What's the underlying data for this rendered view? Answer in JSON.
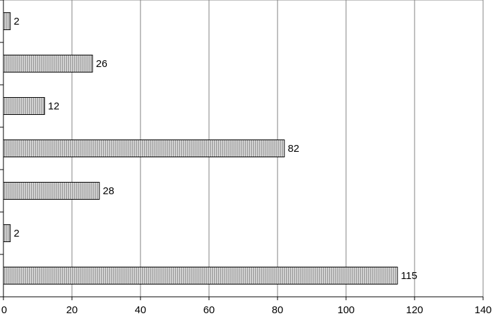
{
  "chart_data": {
    "type": "bar",
    "orientation": "horizontal",
    "categories": [
      null,
      null,
      null,
      null,
      null,
      null,
      null
    ],
    "values": [
      2,
      26,
      12,
      82,
      28,
      2,
      115
    ],
    "color": "#6e6e6e",
    "xlim": [
      0,
      140
    ],
    "xticks": [
      0,
      20,
      40,
      60,
      80,
      100,
      120,
      140
    ],
    "grid": true
  }
}
